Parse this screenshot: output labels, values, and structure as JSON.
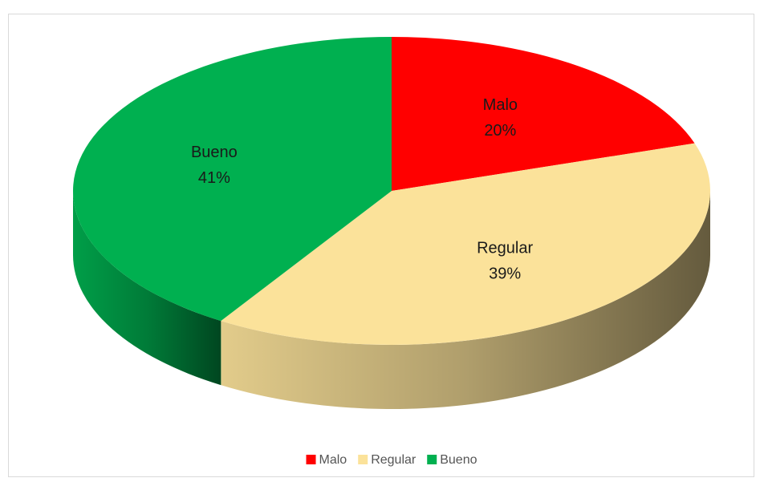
{
  "chart_data": {
    "type": "pie",
    "categories": [
      "Malo",
      "Regular",
      "Bueno"
    ],
    "values": [
      20,
      39,
      41
    ],
    "value_labels": [
      "20%",
      "39%",
      "41%"
    ],
    "colors": [
      "#ff0000",
      "#fbe29a",
      "#00b050"
    ],
    "legend": "bottom"
  }
}
